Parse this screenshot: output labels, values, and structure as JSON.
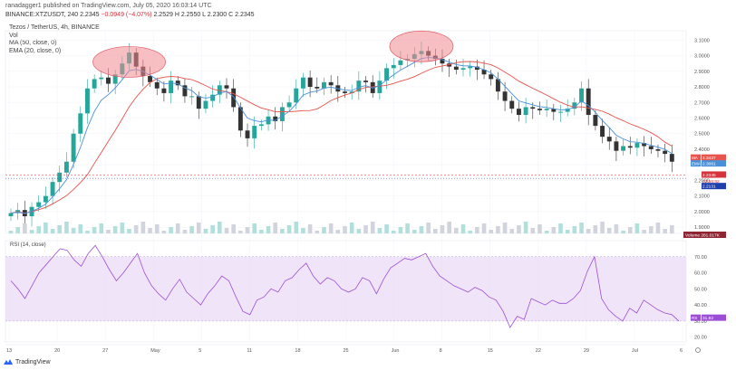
{
  "header": {
    "published": "ranadagger1 published on TradingView.com, July 05, 2020 16:03:14 UTC",
    "symbol": "BINANCE:XTZUSDT, 240",
    "ohlc": "2.2345",
    "change": "−0.0949 (−4.07%)",
    "ohlc_rest": "2.2529  H 2.2550  L 2.2300  C 2.2345"
  },
  "legend": {
    "title": "Tezos / TetherUS, 4h, BINANCE",
    "vol": "Vol",
    "ma": "MA (50, close, 0)",
    "ema": "EMA (20, close, 0)",
    "rsi": "RSI (14, close)"
  },
  "footer": {
    "brand": "TradingView"
  },
  "colors": {
    "up": "#26a69a",
    "down": "#333333",
    "ma": "#e8534c",
    "ema": "#4a90d9",
    "rsi": "#9c4fd6",
    "rsi_band": "#e9d8f7",
    "ellipse": "#f28a92"
  },
  "chart_data": {
    "type": "line",
    "symbol": "XTZUSDT",
    "timeframe": "4h",
    "x_ticks": [
      "13",
      "20",
      "27",
      "May",
      "5",
      "11",
      "18",
      "25",
      "Jun",
      "8",
      "15",
      "22",
      "29",
      "Jul",
      "6"
    ],
    "y_ticks": [
      "1.9000",
      "2.0000",
      "2.1000",
      "2.2000",
      "2.3000",
      "2.4000",
      "2.5000",
      "2.6000",
      "2.7000",
      "2.8000",
      "2.9000",
      "3.0000",
      "3.1000"
    ],
    "ylim": [
      1.86,
      3.16
    ],
    "price_close_series": [
      1.99,
      2.01,
      1.97,
      2.03,
      2.06,
      2.1,
      2.19,
      2.25,
      2.32,
      2.5,
      2.63,
      2.79,
      2.85,
      2.86,
      2.82,
      2.88,
      2.95,
      3.02,
      2.93,
      2.87,
      2.83,
      2.79,
      2.76,
      2.84,
      2.81,
      2.74,
      2.74,
      2.66,
      2.71,
      2.75,
      2.81,
      2.79,
      2.67,
      2.52,
      2.47,
      2.55,
      2.56,
      2.61,
      2.58,
      2.67,
      2.7,
      2.79,
      2.86,
      2.8,
      2.79,
      2.83,
      2.81,
      2.77,
      2.76,
      2.77,
      2.84,
      2.83,
      2.76,
      2.84,
      2.92,
      2.94,
      2.97,
      2.98,
      3.01,
      3.03,
      3.0,
      2.98,
      2.95,
      2.93,
      2.91,
      2.92,
      2.93,
      2.91,
      2.88,
      2.85,
      2.77,
      2.71,
      2.66,
      2.62,
      2.67,
      2.66,
      2.65,
      2.66,
      2.64,
      2.64,
      2.66,
      2.7,
      2.79,
      2.62,
      2.55,
      2.48,
      2.45,
      2.39,
      2.42,
      2.41,
      2.44,
      2.42,
      2.4,
      2.39,
      2.37,
      2.32
    ],
    "annotations": {
      "last_price": "2.2345",
      "ma_label": "MA",
      "ma_value": "2.3437",
      "ema_label": "EMA",
      "ema_value": "2.3061",
      "countdown": "03:56:52",
      "low_level": "2.2131",
      "volume_label": "Volume",
      "volume_value": "281.017K",
      "rsi_label": "RS",
      "rsi_value": "31.82"
    },
    "rsi": {
      "y_ticks": [
        "20.00",
        "30.00",
        "40.00",
        "50.00",
        "60.00",
        "70.00"
      ],
      "band": [
        30,
        70
      ],
      "ylim": [
        17,
        80
      ],
      "values": [
        55,
        50,
        44,
        52,
        60,
        65,
        70,
        75,
        74,
        68,
        64,
        72,
        77,
        70,
        62,
        55,
        60,
        66,
        72,
        60,
        52,
        47,
        43,
        50,
        56,
        48,
        44,
        40,
        47,
        52,
        58,
        55,
        45,
        36,
        34,
        43,
        45,
        50,
        48,
        55,
        57,
        62,
        66,
        58,
        53,
        57,
        55,
        50,
        48,
        50,
        57,
        55,
        47,
        56,
        63,
        66,
        69,
        68,
        70,
        72,
        64,
        58,
        55,
        52,
        50,
        48,
        51,
        49,
        45,
        43,
        36,
        26,
        33,
        31,
        44,
        42,
        40,
        43,
        41,
        41,
        44,
        49,
        61,
        70,
        44,
        37,
        33,
        30,
        38,
        35,
        43,
        40,
        37,
        35,
        34,
        30
      ]
    },
    "markers": [
      "ellipse around late-April top",
      "ellipse around early-June top"
    ]
  }
}
